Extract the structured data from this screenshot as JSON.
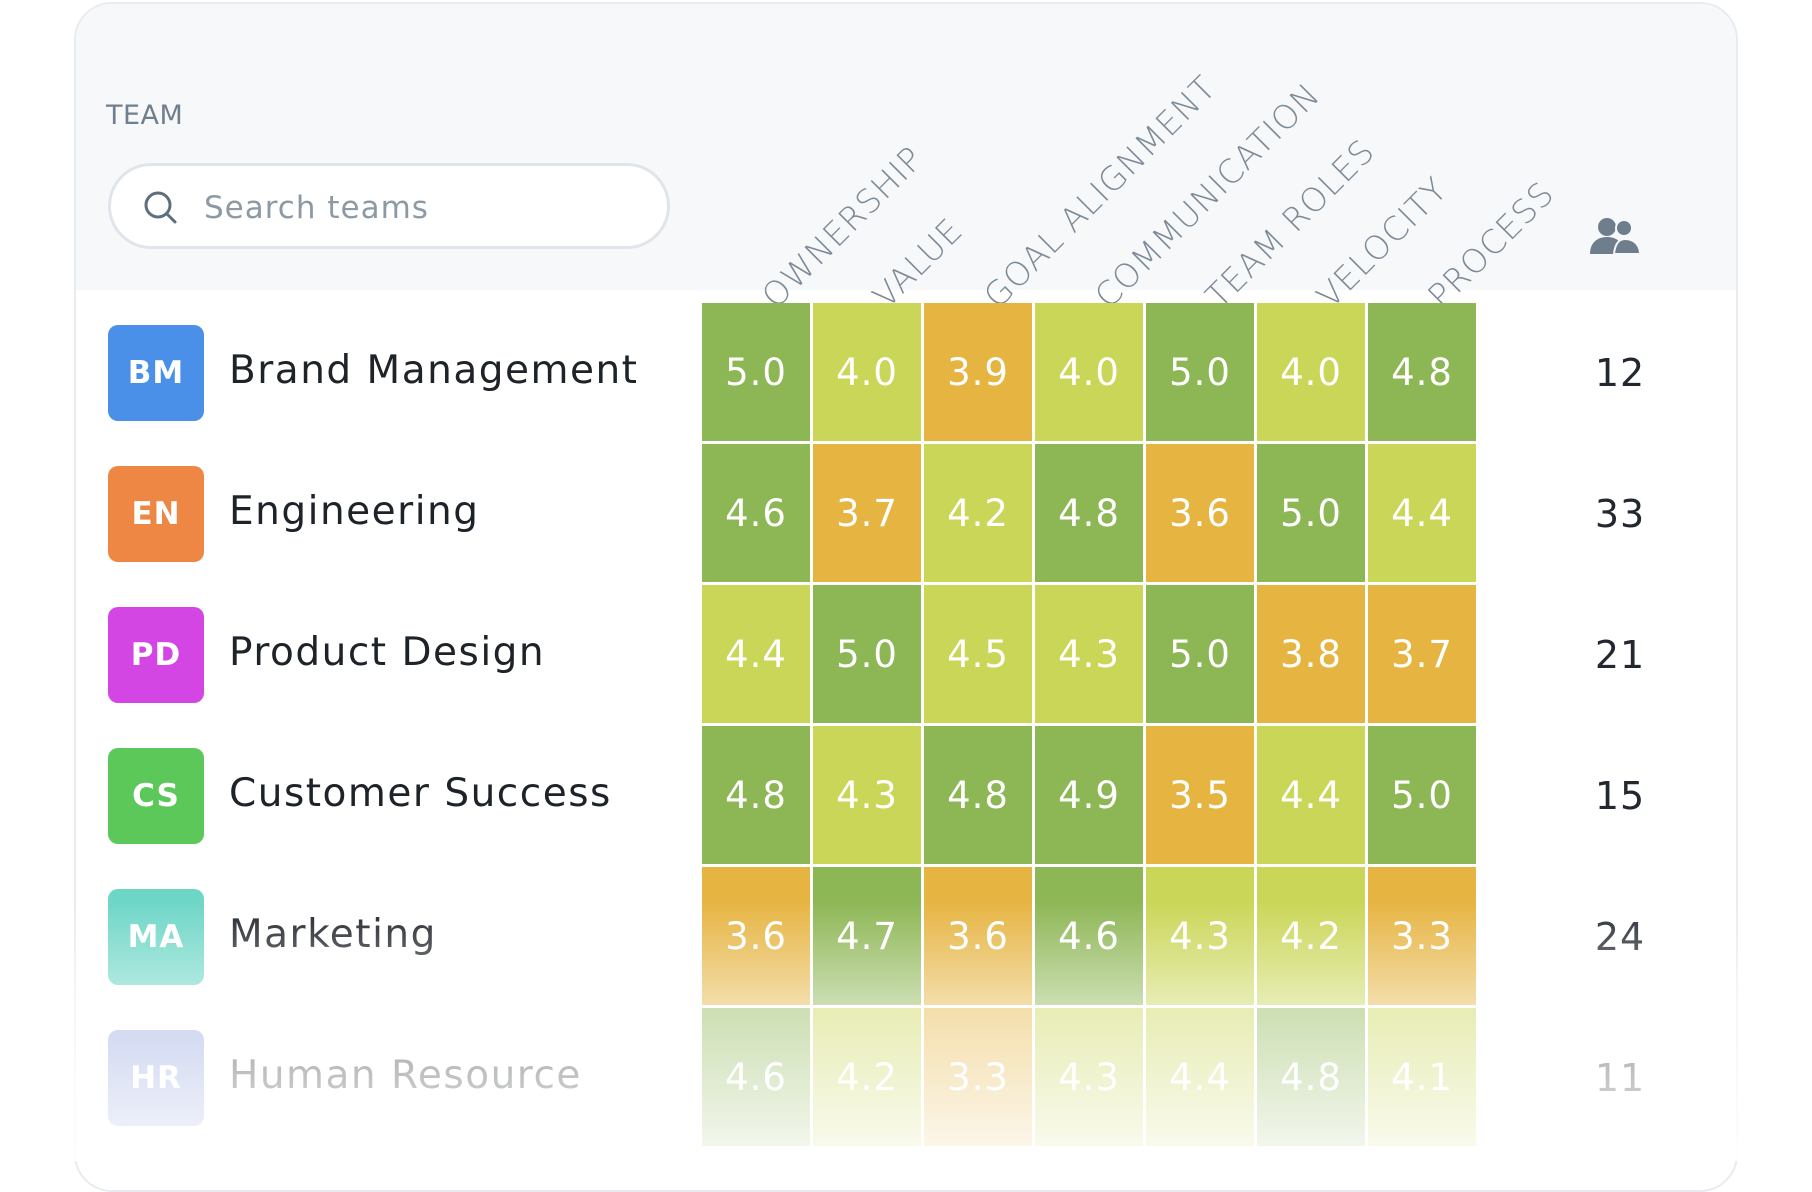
{
  "header": {
    "team_label": "TEAM",
    "search_placeholder": "Search teams",
    "columns": [
      "OWNERSHIP",
      "VALUE",
      "GOAL ALIGNMENT",
      "COMMUNICATION",
      "TEAM ROLES",
      "VELOCITY",
      "PROCESS"
    ],
    "members_icon": "people-icon"
  },
  "teams": [
    {
      "initials": "BM",
      "name": "Brand Management",
      "color": "#4a90e8",
      "scores": [
        "5.0",
        "4.0",
        "3.9",
        "4.0",
        "5.0",
        "4.0",
        "4.8"
      ],
      "members": "12"
    },
    {
      "initials": "EN",
      "name": "Engineering",
      "color": "#ee8644",
      "scores": [
        "4.6",
        "3.7",
        "4.2",
        "4.8",
        "3.6",
        "5.0",
        "4.4"
      ],
      "members": "33"
    },
    {
      "initials": "PD",
      "name": "Product Design",
      "color": "#d346e4",
      "scores": [
        "4.4",
        "5.0",
        "4.5",
        "4.3",
        "5.0",
        "3.8",
        "3.7"
      ],
      "members": "21"
    },
    {
      "initials": "CS",
      "name": "Customer Success",
      "color": "#5dc85a",
      "scores": [
        "4.8",
        "4.3",
        "4.8",
        "4.9",
        "3.5",
        "4.4",
        "5.0"
      ],
      "members": "15"
    },
    {
      "initials": "MA",
      "name": "Marketing",
      "color": "#6dd6c6",
      "scores": [
        "3.6",
        "4.7",
        "3.6",
        "4.6",
        "4.3",
        "4.2",
        "3.3"
      ],
      "members": "24"
    },
    {
      "initials": "HR",
      "name": "Human Resource",
      "color": "#8fa1dc",
      "scores": [
        "4.6",
        "4.2",
        "3.3",
        "4.3",
        "4.4",
        "4.8",
        "4.1"
      ],
      "members": "11"
    }
  ],
  "colors": {
    "score_high": "#8db654",
    "score_mid": "#cad657",
    "score_low": "#e6b441"
  }
}
